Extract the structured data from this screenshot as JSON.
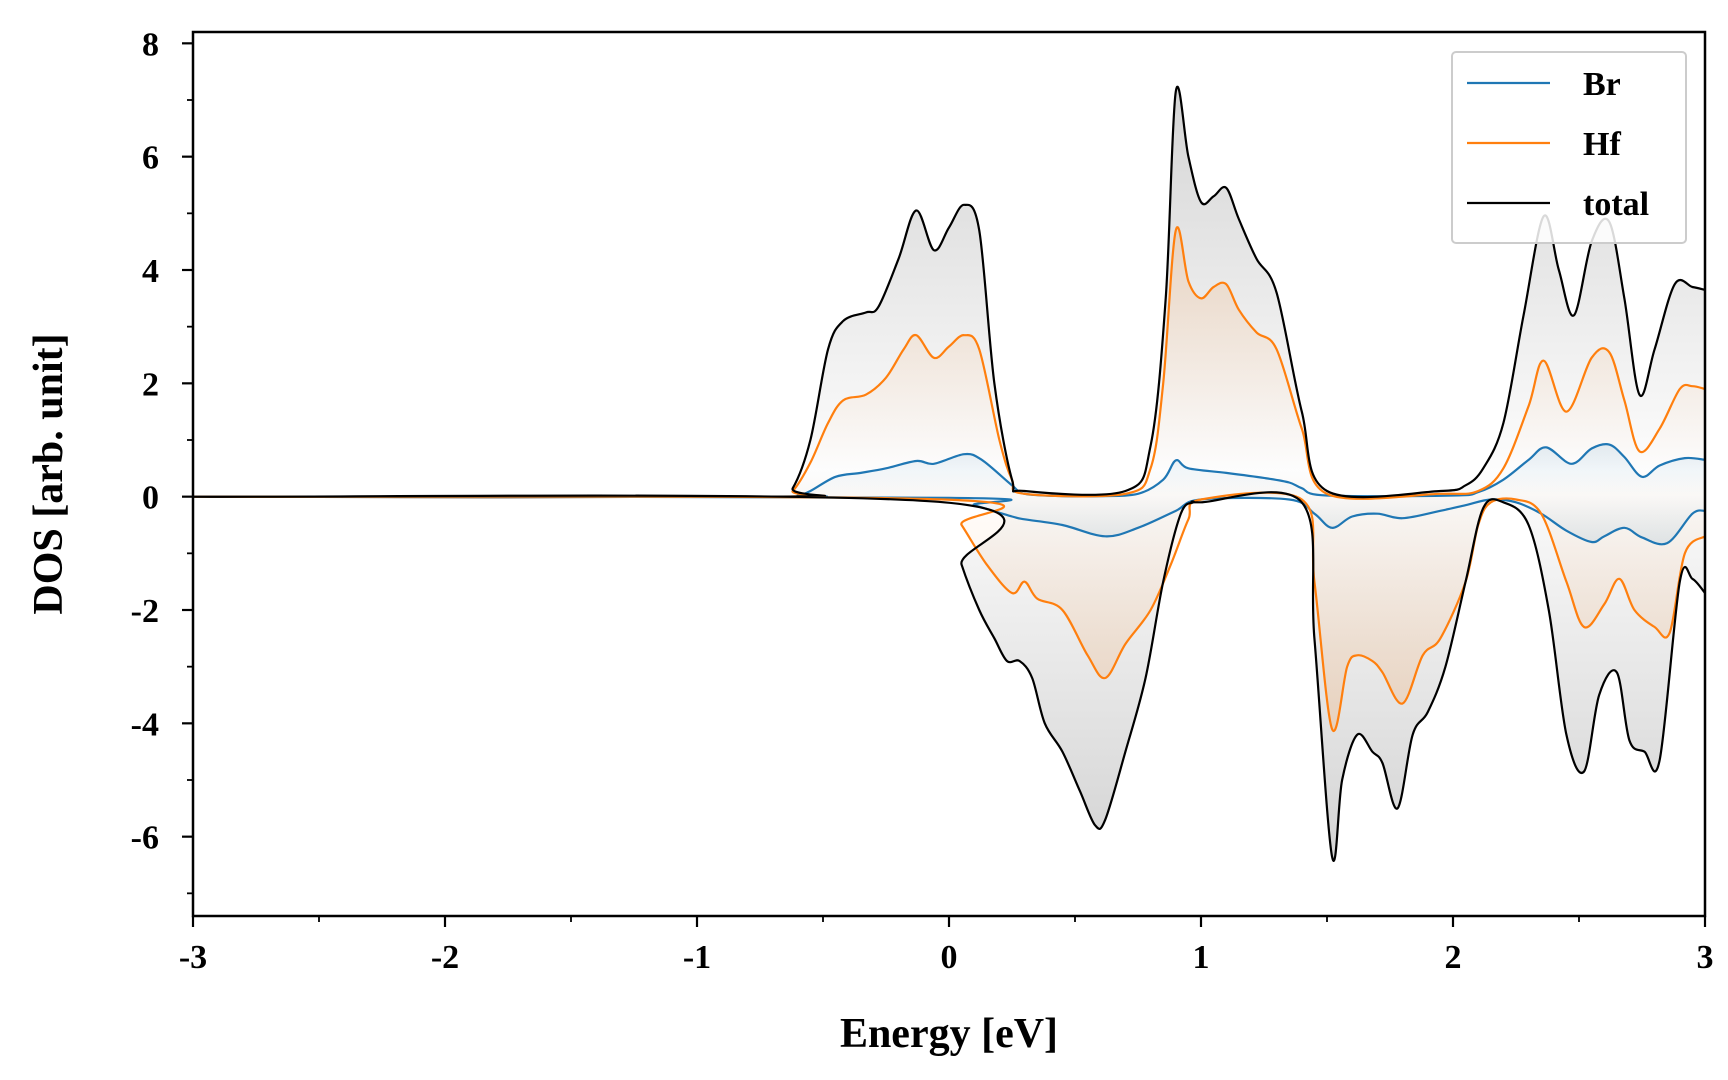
{
  "chart_data": {
    "type": "line",
    "title": "",
    "xlabel": "Energy [eV]",
    "ylabel": "DOS [arb. unit]",
    "xlim": [
      -3,
      3
    ],
    "ylim": [
      -7.4,
      8.2
    ],
    "xticks": [
      -3,
      -2,
      -1,
      0,
      1,
      2,
      3
    ],
    "xtick_labels": [
      "-3",
      "-2",
      "-1",
      "0",
      "1",
      "2",
      "3"
    ],
    "yticks": [
      8,
      6,
      4,
      2,
      0,
      -2,
      -4,
      -6
    ],
    "ytick_labels": [
      "8",
      "6",
      "4",
      "2",
      "0",
      "-2",
      "-4",
      "-6"
    ],
    "grid": false,
    "legend_position": "top-right",
    "fill_between": true,
    "series": [
      {
        "name": "Br",
        "color": "#1f77b4",
        "spin": "up",
        "x": [
          -3,
          -0.68,
          -0.6,
          -0.55,
          -0.45,
          -0.35,
          -0.25,
          -0.13,
          -0.06,
          0.06,
          0.13,
          0.25,
          0.3,
          0.45,
          0.6,
          0.75,
          0.85,
          0.9,
          0.95,
          1.1,
          1.25,
          1.35,
          1.4,
          1.5,
          2.0,
          2.1,
          2.2,
          2.3,
          2.37,
          2.47,
          2.55,
          2.62,
          2.68,
          2.75,
          2.82,
          2.92,
          3.0
        ],
        "y": [
          0,
          0,
          0.02,
          0.1,
          0.35,
          0.42,
          0.5,
          0.63,
          0.58,
          0.75,
          0.65,
          0.2,
          0.05,
          0.01,
          0.01,
          0.05,
          0.3,
          0.64,
          0.5,
          0.42,
          0.33,
          0.25,
          0.15,
          0.02,
          0.02,
          0.08,
          0.3,
          0.65,
          0.87,
          0.58,
          0.85,
          0.92,
          0.7,
          0.35,
          0.55,
          0.68,
          0.65
        ]
      },
      {
        "name": "Hf",
        "color": "#ff7f0e",
        "spin": "up",
        "x": [
          -3,
          -0.68,
          -0.62,
          -0.55,
          -0.48,
          -0.42,
          -0.33,
          -0.25,
          -0.18,
          -0.13,
          -0.06,
          0.0,
          0.06,
          0.12,
          0.2,
          0.25,
          0.3,
          0.7,
          0.8,
          0.85,
          0.9,
          0.95,
          1.0,
          1.05,
          1.1,
          1.15,
          1.22,
          1.3,
          1.4,
          1.5,
          1.95,
          2.1,
          2.2,
          2.3,
          2.36,
          2.45,
          2.55,
          2.62,
          2.68,
          2.74,
          2.82,
          2.9,
          2.95,
          3.0
        ],
        "y": [
          0,
          0,
          0.1,
          0.6,
          1.3,
          1.7,
          1.8,
          2.1,
          2.6,
          2.85,
          2.45,
          2.65,
          2.85,
          2.6,
          1.0,
          0.3,
          0.05,
          0.05,
          0.5,
          2.0,
          4.7,
          3.8,
          3.5,
          3.7,
          3.75,
          3.3,
          2.9,
          2.6,
          1.2,
          0.05,
          0.05,
          0.1,
          0.5,
          1.6,
          2.4,
          1.5,
          2.45,
          2.55,
          1.7,
          0.8,
          1.2,
          1.9,
          1.95,
          1.9
        ]
      },
      {
        "name": "total",
        "color": "#000000",
        "spin": "up",
        "x": [
          -3,
          -0.68,
          -0.62,
          -0.55,
          -0.48,
          -0.42,
          -0.33,
          -0.28,
          -0.2,
          -0.13,
          -0.06,
          0.0,
          0.06,
          0.12,
          0.18,
          0.25,
          0.3,
          0.7,
          0.8,
          0.86,
          0.9,
          0.95,
          1.0,
          1.05,
          1.1,
          1.15,
          1.22,
          1.3,
          1.4,
          1.5,
          1.95,
          2.05,
          2.12,
          2.2,
          2.28,
          2.36,
          2.42,
          2.48,
          2.55,
          2.62,
          2.68,
          2.74,
          2.8,
          2.88,
          2.95,
          3.0
        ],
        "y": [
          0,
          0,
          0.15,
          1.0,
          2.6,
          3.1,
          3.25,
          3.35,
          4.2,
          5.05,
          4.35,
          4.75,
          5.15,
          4.7,
          2.0,
          0.3,
          0.1,
          0.1,
          0.9,
          3.5,
          7.15,
          6.0,
          5.2,
          5.3,
          5.45,
          4.9,
          4.2,
          3.6,
          1.5,
          0.1,
          0.1,
          0.2,
          0.5,
          1.3,
          3.2,
          4.95,
          4.0,
          3.2,
          4.5,
          4.85,
          3.5,
          1.8,
          2.6,
          3.75,
          3.7,
          3.65
        ]
      },
      {
        "name": "Br",
        "color": "#1f77b4",
        "spin": "down",
        "x": [
          -3,
          0.0,
          0.1,
          0.25,
          0.3,
          0.45,
          0.62,
          0.75,
          0.9,
          1.0,
          1.35,
          1.45,
          1.52,
          1.6,
          1.7,
          1.8,
          1.95,
          2.05,
          2.15,
          2.25,
          2.35,
          2.45,
          2.55,
          2.6,
          2.68,
          2.75,
          2.85,
          2.95,
          3.0
        ],
        "y": [
          0,
          -0.02,
          -0.15,
          -0.35,
          -0.4,
          -0.5,
          -0.7,
          -0.55,
          -0.25,
          -0.05,
          -0.05,
          -0.3,
          -0.55,
          -0.35,
          -0.3,
          -0.38,
          -0.25,
          -0.15,
          -0.05,
          -0.1,
          -0.3,
          -0.6,
          -0.8,
          -0.7,
          -0.55,
          -0.72,
          -0.82,
          -0.3,
          -0.25
        ]
      },
      {
        "name": "Hf",
        "color": "#ff7f0e",
        "spin": "down",
        "x": [
          -3,
          -0.02,
          0.05,
          0.15,
          0.25,
          0.3,
          0.35,
          0.45,
          0.55,
          0.62,
          0.7,
          0.8,
          0.88,
          0.95,
          1.0,
          1.4,
          1.45,
          1.52,
          1.58,
          1.62,
          1.68,
          1.72,
          1.8,
          1.88,
          1.95,
          2.05,
          2.1,
          2.15,
          2.25,
          2.35,
          2.45,
          2.52,
          2.6,
          2.66,
          2.72,
          2.8,
          2.86,
          2.92,
          3.0
        ],
        "y": [
          0,
          -0.05,
          -0.5,
          -1.2,
          -1.7,
          -1.5,
          -1.8,
          -2.0,
          -2.8,
          -3.2,
          -2.6,
          -2.0,
          -1.2,
          -0.4,
          -0.05,
          -0.05,
          -1.5,
          -4.1,
          -3.0,
          -2.8,
          -2.9,
          -3.1,
          -3.65,
          -2.8,
          -2.5,
          -1.5,
          -0.5,
          -0.1,
          -0.05,
          -0.3,
          -1.5,
          -2.3,
          -1.9,
          -1.45,
          -2.0,
          -2.3,
          -2.4,
          -1.0,
          -0.7
        ]
      },
      {
        "name": "total",
        "color": "#000000",
        "spin": "down",
        "x": [
          -3,
          -0.02,
          0.05,
          0.12,
          0.18,
          0.23,
          0.28,
          0.33,
          0.38,
          0.45,
          0.52,
          0.58,
          0.62,
          0.7,
          0.78,
          0.85,
          0.92,
          0.97,
          1.0,
          1.4,
          1.45,
          1.52,
          1.56,
          1.62,
          1.68,
          1.72,
          1.78,
          1.84,
          1.9,
          1.97,
          2.05,
          2.12,
          2.2,
          2.3,
          2.38,
          2.45,
          2.52,
          2.58,
          2.65,
          2.7,
          2.76,
          2.82,
          2.9,
          2.95,
          3.0
        ],
        "y": [
          0,
          -0.1,
          -1.2,
          -2.0,
          -2.5,
          -2.9,
          -2.9,
          -3.2,
          -4.0,
          -4.5,
          -5.2,
          -5.8,
          -5.7,
          -4.5,
          -3.2,
          -1.5,
          -0.3,
          -0.1,
          -0.1,
          -0.1,
          -2.5,
          -6.35,
          -5.0,
          -4.2,
          -4.5,
          -4.7,
          -5.5,
          -4.2,
          -3.8,
          -3.0,
          -1.5,
          -0.2,
          -0.1,
          -0.5,
          -2.0,
          -4.2,
          -4.85,
          -3.5,
          -3.1,
          -4.3,
          -4.5,
          -4.65,
          -1.5,
          -1.45,
          -1.7
        ]
      }
    ]
  }
}
